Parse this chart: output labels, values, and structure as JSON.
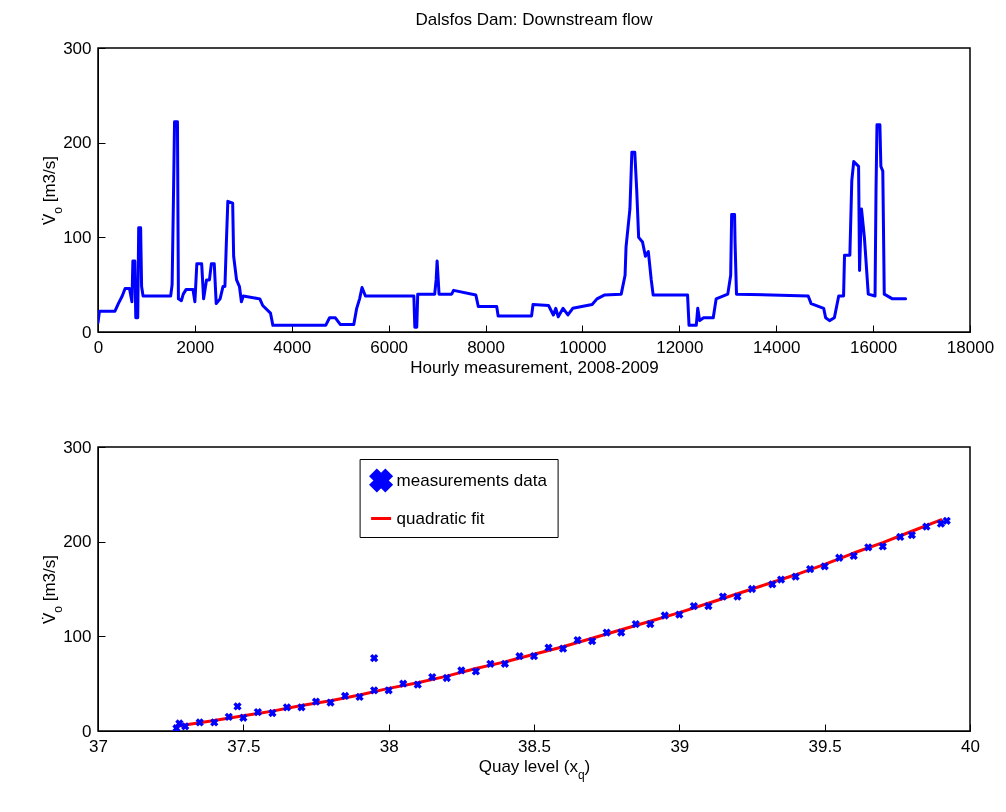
{
  "chart_data": [
    {
      "type": "line",
      "title": "Dalsfos Dam: Downstream flow",
      "xlabel": "Hourly measurement, 2008-2009",
      "ylabel": "V̇$_{o}$ [m3/s]",
      "xlim": [
        0,
        18000
      ],
      "ylim": [
        0,
        300
      ],
      "xticks": [
        0,
        2000,
        4000,
        6000,
        8000,
        10000,
        12000,
        14000,
        16000,
        18000
      ],
      "yticks": [
        0,
        100,
        200,
        300
      ],
      "series": [
        {
          "color": "#0000ff",
          "x": [
            0,
            30,
            350,
            420,
            500,
            560,
            650,
            700,
            720,
            760,
            780,
            820,
            840,
            880,
            900,
            930,
            1500,
            1530,
            1560,
            1580,
            1640,
            1660,
            1720,
            1760,
            1820,
            1960,
            2000,
            2040,
            2140,
            2180,
            2240,
            2300,
            2340,
            2400,
            2440,
            2520,
            2580,
            2620,
            2650,
            2680,
            2780,
            2800,
            2860,
            2920,
            2960,
            3000,
            3340,
            3400,
            3560,
            3610,
            4700,
            4780,
            4900,
            5000,
            5280,
            5340,
            5400,
            5450,
            5520,
            6520,
            6540,
            6580,
            6600,
            6950,
            6980,
            7000,
            7040,
            7300,
            7340,
            7800,
            7850,
            8230,
            8260,
            8950,
            8980,
            9300,
            9400,
            9450,
            9500,
            9600,
            9700,
            9800,
            10200,
            10300,
            10450,
            10800,
            10880,
            10900,
            10980,
            11020,
            11080,
            11120,
            11160,
            11240,
            11300,
            11360,
            11420,
            11460,
            12170,
            12200,
            12350,
            12380,
            12420,
            12500,
            12700,
            12760,
            13000,
            13060,
            13080,
            13140,
            13150,
            13180,
            14660,
            14720,
            14980,
            15020,
            15100,
            15200,
            15290,
            15390,
            15410,
            15520,
            15560,
            15600,
            15700,
            15720,
            15760,
            15820,
            15900,
            16040,
            16060,
            16080,
            16140,
            16160,
            16200,
            16230,
            16400,
            16670
          ],
          "values": [
            10,
            22,
            22,
            30,
            38,
            46,
            46,
            32,
            75,
            75,
            15,
            15,
            110,
            110,
            48,
            38,
            38,
            50,
            150,
            222,
            222,
            35,
            33,
            40,
            45,
            45,
            32,
            72,
            72,
            35,
            55,
            55,
            72,
            72,
            30,
            35,
            48,
            48,
            95,
            138,
            136,
            80,
            55,
            48,
            32,
            38,
            35,
            28,
            20,
            7,
            7,
            15,
            15,
            8,
            8,
            25,
            35,
            47,
            38,
            38,
            5,
            5,
            40,
            40,
            55,
            75,
            40,
            40,
            44,
            39,
            27,
            27,
            17,
            17,
            29,
            28,
            18,
            25,
            16,
            25,
            18,
            25,
            29,
            35,
            39,
            40,
            60,
            90,
            130,
            190,
            190,
            150,
            100,
            95,
            80,
            85,
            55,
            39,
            39,
            7,
            7,
            25,
            12,
            15,
            15,
            35,
            40,
            60,
            124,
            124,
            95,
            40,
            38,
            30,
            25,
            15,
            12,
            15,
            38,
            38,
            81,
            81,
            160,
            180,
            175,
            65,
            130,
            100,
            40,
            38,
            150,
            219,
            219,
            175,
            170,
            40,
            35,
            35
          ]
        }
      ]
    },
    {
      "type": "scatter",
      "xlabel": "Quay level (x$_{q}$)",
      "ylabel": "V̇$_{o}$ [m3/s]",
      "xlim": [
        37,
        40
      ],
      "ylim": [
        0,
        300
      ],
      "xticks": [
        37,
        37.5,
        38,
        38.5,
        39,
        39.5,
        40
      ],
      "yticks": [
        0,
        100,
        200,
        300
      ],
      "legend": "top",
      "series": [
        {
          "name": "measurements data",
          "marker": "cross",
          "color": "#0000ff",
          "x": [
            37.27,
            37.28,
            37.3,
            37.35,
            37.4,
            37.45,
            37.48,
            37.5,
            37.55,
            37.6,
            37.65,
            37.7,
            37.75,
            37.8,
            37.85,
            37.9,
            37.95,
            37.95,
            38,
            38.05,
            38.1,
            38.15,
            38.2,
            38.25,
            38.3,
            38.35,
            38.4,
            38.45,
            38.5,
            38.55,
            38.6,
            38.65,
            38.7,
            38.75,
            38.8,
            38.85,
            38.9,
            38.95,
            39,
            39.05,
            39.1,
            39.15,
            39.2,
            39.25,
            39.32,
            39.35,
            39.4,
            39.45,
            39.5,
            39.55,
            39.6,
            39.65,
            39.7,
            39.76,
            39.8,
            39.85,
            39.9,
            39.92
          ],
          "values": [
            3,
            8,
            5,
            9,
            9,
            15,
            26,
            14,
            20,
            19,
            25,
            25,
            31,
            30,
            37,
            36,
            77,
            43,
            43,
            50,
            49,
            57,
            56,
            64,
            63,
            71,
            71,
            79,
            79,
            88,
            87,
            96,
            95,
            104,
            104,
            113,
            113,
            122,
            123,
            132,
            132,
            142,
            142,
            150,
            155,
            160,
            163,
            171,
            174,
            183,
            185,
            194,
            195,
            205,
            207,
            216,
            219,
            222
          ]
        },
        {
          "name": "quadratic fit",
          "type": "line",
          "color": "#ff0000",
          "x": [
            37.27,
            37.4,
            37.5,
            37.6,
            37.7,
            37.8,
            37.9,
            38,
            38.1,
            38.2,
            38.3,
            38.4,
            38.5,
            38.6,
            38.7,
            38.8,
            38.9,
            39,
            39.1,
            39.2,
            39.3,
            39.4,
            39.5,
            39.6,
            39.7,
            39.8,
            39.9
          ],
          "values": [
            5,
            11,
            16,
            21,
            27,
            32,
            38,
            45,
            51,
            58,
            66,
            73,
            81,
            89,
            98,
            107,
            116,
            125,
            135,
            145,
            155,
            165,
            176,
            188,
            199,
            211,
            223
          ]
        }
      ]
    }
  ]
}
